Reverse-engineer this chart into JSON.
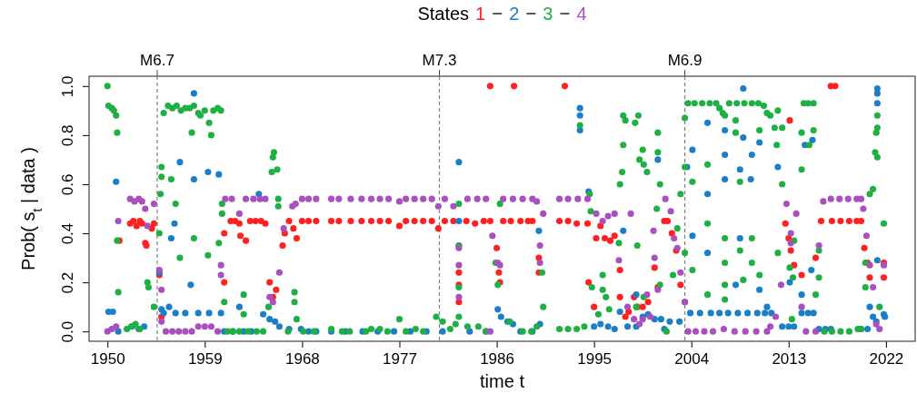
{
  "chart_data": {
    "type": "scatter",
    "legend_title": "States",
    "legend": "top",
    "xlabel": "time t",
    "ylabel": "Prob( s$_{t}$ | data )",
    "marker": "circle",
    "grid": false,
    "xlim": [
      1948.3,
      2024.7
    ],
    "xticks": [
      1950,
      1959,
      1968,
      1977,
      1986,
      1995,
      2004,
      2013,
      2022
    ],
    "ylim": [
      -0.04,
      1.04
    ],
    "yticks": [
      {
        "value": 0,
        "label": "0.0"
      },
      {
        "value": 0.2,
        "label": "0.2"
      },
      {
        "value": 0.4,
        "label": "0.4"
      },
      {
        "value": 0.6,
        "label": "0.6"
      },
      {
        "value": 0.8,
        "label": "0.8"
      },
      {
        "value": 1,
        "label": "1.0"
      }
    ],
    "ref_lines": [
      {
        "axis": "x",
        "value": 1954.6,
        "label": "M6.7",
        "color": "#808080",
        "line_style": "dashed"
      },
      {
        "axis": "x",
        "value": 1980.7,
        "label": "M7.3",
        "color": "#808080",
        "line_style": "dashed"
      },
      {
        "axis": "x",
        "value": 2003.4,
        "label": "M6.9",
        "color": "#808080",
        "line_style": "dashed"
      }
    ],
    "series": [
      {
        "name": "1",
        "color": "#ff2121",
        "x": [
          1951.1,
          1952.1,
          1952.4,
          1952.7,
          1953.0,
          1953.2,
          1953.5,
          1953.6,
          1954.1,
          1954.3,
          1954.8,
          1955.0,
          1960.8,
          1960.8,
          1961.4,
          1961.8,
          1962.2,
          1962.3,
          1962.8,
          1963.2,
          1963.7,
          1964.2,
          1964.6,
          1965.0,
          1965.3,
          1965.6,
          1966.2,
          1966.4,
          1966.8,
          1967.2,
          1967.5,
          1968.0,
          1968.6,
          1969.3,
          1970.7,
          1971.4,
          1972.5,
          1973.5,
          1974.4,
          1975.2,
          1976.0,
          1977.0,
          1977.6,
          1978.4,
          1979.2,
          1980.0,
          1980.6,
          1981.2,
          1982.0,
          1982.5,
          1982.5,
          1982.5,
          1982.5,
          1983.2,
          1984.0,
          1984.8,
          1985.4,
          1985.4,
          1986.0,
          1986.2,
          1986.3,
          1986.6,
          1987.3,
          1987.6,
          1988.2,
          1988.9,
          1989.3,
          1989.9,
          1989.9,
          1991.8,
          1992.3,
          1992.6,
          1993.4,
          1994.4,
          1994.5,
          1995.0,
          1995.2,
          1995.6,
          1996.0,
          1996.5,
          1996.9,
          1997.4,
          1997.4,
          1997.9,
          1998.2,
          1998.7,
          1999.0,
          1999.5,
          2000.0,
          2000.6,
          2000.9,
          2001.5,
          2001.8,
          2002.2,
          2002.6,
          2003.0,
          2012.7,
          2013.0,
          2013.1,
          2013.2,
          2013.5,
          2014.2,
          2015.5,
          2016.0,
          2016.9,
          2017.3,
          2017.0,
          2017.8,
          2018.6,
          2019.3,
          2019.7,
          2020.0,
          2020.3,
          2020.5,
          2021.8,
          2021.8
        ],
        "values": [
          0.37,
          0.44,
          0.45,
          0.43,
          0.45,
          0.44,
          0.36,
          0.35,
          0.42,
          0.44,
          0.23,
          0.06,
          0.2,
          0.4,
          0.45,
          0.45,
          0.44,
          0.39,
          0.37,
          0.45,
          0.45,
          0.45,
          0.44,
          0.2,
          0.14,
          0.17,
          0.35,
          0.4,
          0.45,
          0.42,
          0.38,
          0.45,
          0.45,
          0.45,
          0.45,
          0.45,
          0.45,
          0.45,
          0.45,
          0.45,
          0.45,
          0.43,
          0.45,
          0.45,
          0.45,
          0.45,
          0.42,
          0.45,
          0.45,
          0.35,
          0.24,
          0.19,
          0.12,
          0.45,
          0.44,
          0.45,
          0.45,
          1.0,
          0.34,
          0.24,
          0.2,
          0.45,
          0.45,
          1.0,
          0.45,
          0.45,
          0.45,
          0.3,
          0.24,
          0.45,
          1.0,
          0.45,
          0.44,
          0.44,
          0.2,
          0.1,
          0.38,
          0.43,
          0.38,
          0.37,
          0.39,
          0.25,
          0.14,
          0.06,
          0.08,
          0.14,
          0.1,
          0.1,
          0.12,
          0.26,
          0.18,
          0.45,
          0.45,
          0.4,
          0.33,
          0.19,
          0.44,
          0.38,
          0.86,
          0.33,
          0.27,
          0.23,
          0.3,
          0.45,
          1.0,
          1.0,
          0.45,
          0.45,
          0.45,
          0.45,
          0.45,
          0.34,
          0.28,
          0.22,
          0.28,
          0.22
        ]
      },
      {
        "name": "2",
        "color": "#1a7fc7",
        "x": [
          1950.1,
          1950.5,
          1950.8,
          1951.0,
          1952.3,
          1952.9,
          1953.4,
          1954.8,
          1955.0,
          1955.2,
          1955.7,
          1955.9,
          1956.2,
          1956.3,
          1956.7,
          1957.2,
          1957.7,
          1958.0,
          1958.0,
          1958.4,
          1959.3,
          1959.4,
          1960.3,
          1960.5,
          1960.8,
          1961.6,
          1962.2,
          1962.6,
          1963.3,
          1964.0,
          1964.4,
          1965.0,
          1965.5,
          1965.9,
          1966.8,
          1967.9,
          1968.6,
          1969.3,
          1970.7,
          1972.0,
          1973.6,
          1975.0,
          1976.5,
          1978.0,
          1979.5,
          1981.0,
          1982.5,
          1982.5,
          1983.5,
          1985.0,
          1986.1,
          1986.4,
          1987.0,
          1987.5,
          1988.2,
          1989.3,
          1989.9,
          1990.0,
          1993.7,
          1993.7,
          1993.7,
          1994.5,
          1995.0,
          1995.6,
          1996.3,
          1996.9,
          1997.4,
          1997.7,
          1998.1,
          1998.9,
          1998.9,
          1999.5,
          2000.0,
          2000.6,
          2000.9,
          2001.2,
          2001.5,
          2002.0,
          2002.9,
          2003.4,
          2003.6,
          2003.9,
          2004.1,
          2004.1,
          2004.8,
          2005.5,
          2005.5,
          2005.5,
          2005.8,
          2006.6,
          2007.1,
          2007.1,
          2007.1,
          2007.4,
          2008.1,
          2008.3,
          2008.5,
          2008.5,
          2008.8,
          2008.8,
          2009.2,
          2009.5,
          2009.6,
          2010.1,
          2010.3,
          2010.3,
          2010.8,
          2011.0,
          2011.4,
          2012.0,
          2012.4,
          2013.0,
          2013.1,
          2013.5,
          2014.2,
          2014.2,
          2014.5,
          2014.8,
          2015.1,
          2015.2,
          2015.3,
          2015.8,
          2016.4,
          2016.9,
          2019.7,
          2020.3,
          2020.5,
          2020.8,
          2021.1,
          2021.2,
          2021.2,
          2021.2,
          2021.2,
          2021.8,
          2021.9
        ],
        "values": [
          0.08,
          0.08,
          0.61,
          0.0,
          0.02,
          0.01,
          0.02,
          0.24,
          0.09,
          0.075,
          0.1,
          0.38,
          0.44,
          0.075,
          0.69,
          0.075,
          0.19,
          0.97,
          0.62,
          0.075,
          0.65,
          0.075,
          0.64,
          0.075,
          0.0,
          0.0,
          0.1,
          0.0,
          0.0,
          0.56,
          0.07,
          0.05,
          0.04,
          0.02,
          0.01,
          0.01,
          0.0,
          0.0,
          0.0,
          0.0,
          0.0,
          0.0,
          0.0,
          0.0,
          0.0,
          0.0,
          0.69,
          0.45,
          0.0,
          0.0,
          0.09,
          0.06,
          0.04,
          0.03,
          0.0,
          0.0,
          0.41,
          0.03,
          0.91,
          0.88,
          0.82,
          0.57,
          0.02,
          0.03,
          0.02,
          0.01,
          0.08,
          0.41,
          0.02,
          0.15,
          0.02,
          0.06,
          0.07,
          0.05,
          0.7,
          0.05,
          0.01,
          0.04,
          0.04,
          0.12,
          0.67,
          0.075,
          0.74,
          0.39,
          0.075,
          0.85,
          0.56,
          0.32,
          0.075,
          0.075,
          0.82,
          0.72,
          0.62,
          0.075,
          0.19,
          0.075,
          0.66,
          0.38,
          0.99,
          0.79,
          0.075,
          0.62,
          0.72,
          0.075,
          0.77,
          0.17,
          0.075,
          0.1,
          0.075,
          0.67,
          0.02,
          0.02,
          0.2,
          0.02,
          0.15,
          0.075,
          0.76,
          0.075,
          0.25,
          0.78,
          0.075,
          0.01,
          0.01,
          0.01,
          0.01,
          0.01,
          0.1,
          0.06,
          0.04,
          0.99,
          0.97,
          0.93,
          0.29,
          0.07,
          0.06
        ]
      },
      {
        "name": "3",
        "color": "#1fb043",
        "x": [
          1950.0,
          1950.1,
          1950.4,
          1950.6,
          1950.8,
          1950.9,
          1950.9,
          1951.0,
          1951.8,
          1952.2,
          1952.6,
          1953.0,
          1953.7,
          1953.8,
          1954.3,
          1954.8,
          1954.9,
          1955.0,
          1955.0,
          1955.2,
          1955.6,
          1956.0,
          1956.4,
          1956.8,
          1957.2,
          1957.6,
          1958.0,
          1958.4,
          1958.6,
          1959.0,
          1959.4,
          1959.6,
          1959.8,
          1960.2,
          1960.5,
          1957.8,
          1955.9,
          1956.3,
          1956.7,
          1958.0,
          1959.3,
          1960.3,
          1960.6,
          1960.6,
          1960.8,
          1961.1,
          1961.6,
          1962.2,
          1962.6,
          1962.6,
          1963.0,
          1963.8,
          1964.4,
          1964.9,
          1965.2,
          1965.3,
          1965.4,
          1965.7,
          1965.8,
          1965.8,
          1966.7,
          1967.3,
          1967.3,
          1967.5,
          1968.1,
          1969.1,
          1970.7,
          1971.7,
          1972.4,
          1973.9,
          1974.4,
          1975.2,
          1975.9,
          1977.0,
          1977.6,
          1978.5,
          1979.2,
          1980.4,
          1981.0,
          1981.7,
          1982.2,
          1982.5,
          1982.5,
          1982.5,
          1982.5,
          1983.3,
          1984.3,
          1985.0,
          1986.1,
          1985.9,
          1986.3,
          1987.2,
          1988.4,
          1989.2,
          1989.7,
          1990.3,
          1990.2,
          1991.8,
          1992.6,
          1993.4,
          1993.7,
          1994.1,
          1994.6,
          1994.7,
          1994.8,
          1995.4,
          1995.8,
          1995.8,
          1996.1,
          1996.4,
          1997.3,
          1997.4,
          1997.6,
          1997.7,
          1997.7,
          1997.9,
          1998.8,
          1998.9,
          1999.1,
          1999.2,
          1999.5,
          1999.6,
          1999.9,
          1999.0,
          1999.6,
          2000.9,
          2000.9,
          2001.1,
          2000.8,
          2001.1,
          2001.7,
          2002.3,
          2002.7,
          2003.0,
          2003.4,
          2003.4,
          2003.4,
          2003.7,
          2004.3,
          2005.0,
          2005.7,
          2006.3,
          2006.6,
          2006.9,
          2007.1,
          2007.5,
          2008.2,
          2008.9,
          2009.6,
          2010.2,
          2010.7,
          2011.0,
          2011.3,
          2004.1,
          2004.1,
          2005.5,
          2005.5,
          2005.5,
          2007.1,
          2007.1,
          2007.1,
          2007.1,
          2008.1,
          2008.1,
          2008.5,
          2008.5,
          2008.8,
          2009.6,
          2009.6,
          2010.3,
          2010.3,
          2011.7,
          2011.9,
          2012.0,
          2012.4,
          2012.4,
          2012.0,
          2013.1,
          2013.4,
          2013.3,
          2013.5,
          2014.2,
          2014.2,
          2014.4,
          2014.8,
          2015.3,
          2014.9,
          2015.3,
          2015.5,
          2015.8,
          2015.8,
          2016.3,
          2017.0,
          2017.8,
          2018.6,
          2019.4,
          2019.7,
          2020.1,
          2020.1,
          2020.5,
          2020.8,
          2021.0,
          2021.1,
          2021.2,
          2021.2,
          2021.2,
          2021.4,
          2021.8
        ],
        "values": [
          1.0,
          0.92,
          0.91,
          0.9,
          0.88,
          0.81,
          0.37,
          0.16,
          0.01,
          0.02,
          0.03,
          0.01,
          0.2,
          0.18,
          0.1,
          0.4,
          0.56,
          0.67,
          0.63,
          0.89,
          0.92,
          0.91,
          0.92,
          0.9,
          0.91,
          0.91,
          0.92,
          0.89,
          0.88,
          0.9,
          0.85,
          0.8,
          0.9,
          0.91,
          0.9,
          0.81,
          0.62,
          0.52,
          0.3,
          0.38,
          0.31,
          0.36,
          0.52,
          0.48,
          0.12,
          0.0,
          0.0,
          0.0,
          0.15,
          0.07,
          0.0,
          0.0,
          0.0,
          0.1,
          0.65,
          0.71,
          0.73,
          0.66,
          0.54,
          0.51,
          0.0,
          0.16,
          0.12,
          0.05,
          0.0,
          0.0,
          0.01,
          0.0,
          0.0,
          0.0,
          0.01,
          0.01,
          0.0,
          0.05,
          0.0,
          0.01,
          0.0,
          0.06,
          0.04,
          0.01,
          0.03,
          0.52,
          0.35,
          0.18,
          0.06,
          0.02,
          0.02,
          0.0,
          0.19,
          0.28,
          0.52,
          0.04,
          0.0,
          0.0,
          0.02,
          0.1,
          0.24,
          0.01,
          0.01,
          0.01,
          0.84,
          0.02,
          0.56,
          0.49,
          0.18,
          0.07,
          0.23,
          0.17,
          0.14,
          0.09,
          0.36,
          0.6,
          0.65,
          0.76,
          0.88,
          0.86,
          0.85,
          0.1,
          0.88,
          0.7,
          0.74,
          0.68,
          0.65,
          0.35,
          0.14,
          0.81,
          0.73,
          0.6,
          0.5,
          0.19,
          0.0,
          0.23,
          0.42,
          0.56,
          0.67,
          0.87,
          0.32,
          0.93,
          0.93,
          0.93,
          0.93,
          0.93,
          0.91,
          0.89,
          0.88,
          0.93,
          0.93,
          0.93,
          0.93,
          0.93,
          0.92,
          0.89,
          0.88,
          0.61,
          0.25,
          0.68,
          0.44,
          0.15,
          0.38,
          0.28,
          0.19,
          0.13,
          0.86,
          0.81,
          0.61,
          0.33,
          0.21,
          0.38,
          0.28,
          0.82,
          0.23,
          0.83,
          0.76,
          0.9,
          0.83,
          0.6,
          0.32,
          0.26,
          0.22,
          0.05,
          0.37,
          0.81,
          0.66,
          0.93,
          0.93,
          0.93,
          0.76,
          0.82,
          0.15,
          0.22,
          0.33,
          0.0,
          0.0,
          0.0,
          0.0,
          0.01,
          0.01,
          0.28,
          0.18,
          0.56,
          0.58,
          0.73,
          0.81,
          0.88,
          0.83,
          0.71,
          0.1,
          0.44
        ]
      },
      {
        "name": "4",
        "color": "#a94fbf",
        "x": [
          1950.0,
          1950.4,
          1950.8,
          1951.0,
          1952.1,
          1952.5,
          1952.9,
          1953.2,
          1953.5,
          1953.7,
          1954.3,
          1954.8,
          1955.0,
          1955.0,
          1955.4,
          1956.0,
          1956.6,
          1957.2,
          1957.8,
          1958.4,
          1959.0,
          1959.6,
          1960.2,
          1960.5,
          1960.5,
          1960.9,
          1961.5,
          1962.2,
          1962.8,
          1963.5,
          1964.1,
          1964.6,
          1965.0,
          1965.3,
          1965.9,
          1966.3,
          1967.1,
          1967.4,
          1968.0,
          1968.6,
          1969.3,
          1970.7,
          1971.4,
          1972.5,
          1973.5,
          1974.4,
          1975.2,
          1976.0,
          1977.0,
          1977.6,
          1978.4,
          1979.2,
          1980.0,
          1980.6,
          1981.2,
          1982.0,
          1982.5,
          1982.5,
          1982.5,
          1983.3,
          1984.2,
          1985.0,
          1985.4,
          1985.6,
          1986.1,
          1986.3,
          1986.6,
          1987.5,
          1988.4,
          1989.3,
          1989.7,
          1990.0,
          1990.0,
          1990.3,
          1991.8,
          1992.6,
          1993.5,
          1994.4,
          1995.2,
          1995.8,
          1996.3,
          1996.9,
          1997.3,
          1998.1,
          1998.4,
          1998.7,
          1999.2,
          1999.5,
          1999.9,
          2000.2,
          2000.5,
          2000.6,
          2000.9,
          2001.6,
          2002.1,
          2002.4,
          2002.7,
          2003.0,
          2003.4,
          2003.7,
          2004.4,
          2005.2,
          2006.0,
          2007.0,
          2008.0,
          2009.0,
          2010.0,
          2011.0,
          2011.3,
          2011.8,
          2012.3,
          2012.8,
          2013.2,
          2013.2,
          2013.7,
          2014.2,
          2014.6,
          2015.5,
          2015.8,
          2016.2,
          2016.9,
          2017.7,
          2018.5,
          2019.3,
          2019.7,
          2019.9,
          2020.2,
          2020.5,
          2020.8,
          2021.1,
          2021.4,
          2021.8
        ],
        "values": [
          0.0,
          0.01,
          0.02,
          0.45,
          0.54,
          0.53,
          0.54,
          0.53,
          0.5,
          0.43,
          0.52,
          0.25,
          0.17,
          0.04,
          0.0,
          0.0,
          0.0,
          0.0,
          0.0,
          0.02,
          0.02,
          0.02,
          0.0,
          0.27,
          0.23,
          0.54,
          0.54,
          0.48,
          0.54,
          0.54,
          0.54,
          0.54,
          0.14,
          0.12,
          0.24,
          0.42,
          0.51,
          0.52,
          0.54,
          0.54,
          0.54,
          0.54,
          0.54,
          0.54,
          0.54,
          0.54,
          0.54,
          0.54,
          0.53,
          0.54,
          0.54,
          0.54,
          0.54,
          0.51,
          0.54,
          0.51,
          0.34,
          0.27,
          0.14,
          0.54,
          0.54,
          0.54,
          0.0,
          0.39,
          0.28,
          0.27,
          0.54,
          0.54,
          0.54,
          0.54,
          0.53,
          0.35,
          0.28,
          0.48,
          0.54,
          0.54,
          0.54,
          0.54,
          0.48,
          0.45,
          0.47,
          0.48,
          0.29,
          0.1,
          0.48,
          0.05,
          0.03,
          0.05,
          0.15,
          0.06,
          0.41,
          0.3,
          0.17,
          0.54,
          0.49,
          0.38,
          0.34,
          0.24,
          0.12,
          0.0,
          0.0,
          0.0,
          0.0,
          0.01,
          0.0,
          0.0,
          0.0,
          0.0,
          0.02,
          0.06,
          0.19,
          0.52,
          0.4,
          0.36,
          0.48,
          0.1,
          0.0,
          0.0,
          0.35,
          0.53,
          0.54,
          0.54,
          0.54,
          0.54,
          0.54,
          0.5,
          0.39,
          0.27,
          0.18,
          0.03,
          0.01,
          0.27
        ]
      }
    ]
  }
}
